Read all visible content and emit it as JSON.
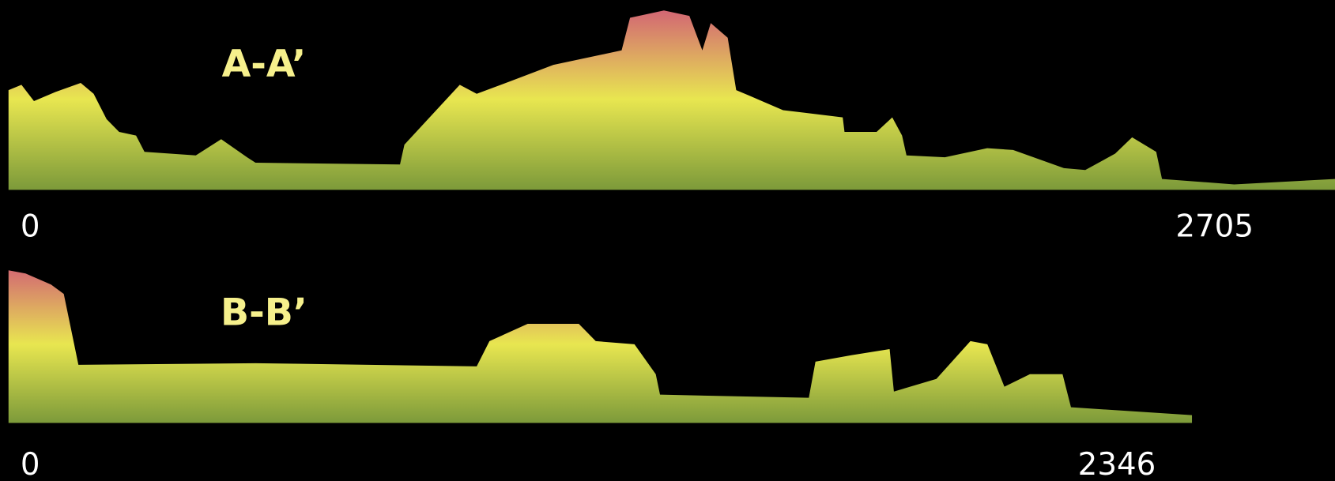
{
  "chart_data": [
    {
      "type": "area",
      "title": "A-A’",
      "x": [
        0,
        29,
        57,
        105,
        162,
        191,
        220,
        248,
        286,
        305,
        420,
        477,
        535,
        554,
        878,
        888,
        1012,
        1050,
        1126,
        1222,
        1375,
        1394,
        1470,
        1527,
        1556,
        1575,
        1613,
        1632,
        1661,
        1737,
        1871,
        1875,
        1947,
        1982,
        2004,
        2014,
        2100,
        2195,
        2253,
        2367,
        2415,
        2482,
        2520,
        2574,
        2587,
        2749,
        2975
      ],
      "values": [
        55,
        58,
        49,
        54,
        59,
        53,
        39,
        32,
        30,
        21,
        19,
        28,
        18,
        15,
        14,
        25,
        58,
        53,
        60,
        69,
        77,
        95,
        99,
        96,
        77,
        92,
        84,
        55,
        52,
        44,
        40,
        32,
        32,
        40,
        30,
        19,
        18,
        23,
        22,
        12,
        11,
        20,
        29,
        21,
        6,
        3,
        6
      ],
      "xlim": [
        0,
        2975
      ],
      "xticks": [
        0,
        2705
      ],
      "ylim": [
        0,
        100
      ],
      "color_stops": [
        "#7c9a3a",
        "#e8e650",
        "#d26474"
      ]
    },
    {
      "type": "area",
      "title": "B-B’",
      "x": [
        0,
        36,
        90,
        117,
        148,
        523,
        991,
        1018,
        1099,
        1207,
        1243,
        1325,
        1370,
        1379,
        1694,
        1708,
        1784,
        1865,
        1874,
        1964,
        2036,
        2072,
        2108,
        2162,
        2231,
        2249,
        2505
      ],
      "values": [
        97,
        95,
        88,
        82,
        37,
        38,
        36,
        52,
        63,
        63,
        52,
        50,
        31,
        18,
        16,
        39,
        43,
        47,
        20,
        28,
        52,
        50,
        23,
        31,
        31,
        10,
        5
      ],
      "xlim": [
        0,
        2505
      ],
      "xticks": [
        0,
        2346
      ],
      "ylim": [
        0,
        100
      ],
      "color_stops": [
        "#7c9a3a",
        "#e8e650",
        "#d26474"
      ]
    }
  ]
}
